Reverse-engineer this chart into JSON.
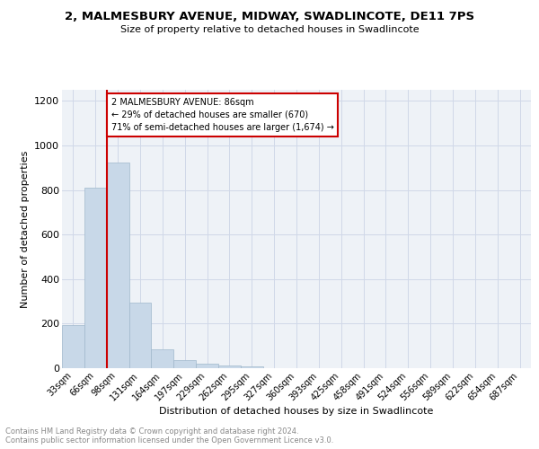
{
  "title": "2, MALMESBURY AVENUE, MIDWAY, SWADLINCOTE, DE11 7PS",
  "subtitle": "Size of property relative to detached houses in Swadlincote",
  "xlabel": "Distribution of detached houses by size in Swadlincote",
  "ylabel": "Number of detached properties",
  "footer_line1": "Contains HM Land Registry data © Crown copyright and database right 2024.",
  "footer_line2": "Contains public sector information licensed under the Open Government Licence v3.0.",
  "bar_labels": [
    "33sqm",
    "66sqm",
    "98sqm",
    "131sqm",
    "164sqm",
    "197sqm",
    "229sqm",
    "262sqm",
    "295sqm",
    "327sqm",
    "360sqm",
    "393sqm",
    "425sqm",
    "458sqm",
    "491sqm",
    "524sqm",
    "556sqm",
    "589sqm",
    "622sqm",
    "654sqm",
    "687sqm"
  ],
  "bar_values": [
    195,
    810,
    925,
    295,
    85,
    35,
    20,
    13,
    8,
    0,
    0,
    0,
    0,
    0,
    0,
    0,
    0,
    0,
    0,
    0,
    0
  ],
  "bar_color": "#c8d8e8",
  "bar_edge_color": "#a0b8cc",
  "annotation_line1": "2 MALMESBURY AVENUE: 86sqm",
  "annotation_line2": "← 29% of detached houses are smaller (670)",
  "annotation_line3": "71% of semi-detached houses are larger (1,674) →",
  "vline_color": "#cc0000",
  "ylim": [
    0,
    1250
  ],
  "yticks": [
    0,
    200,
    400,
    600,
    800,
    1000,
    1200
  ],
  "annotation_box_color": "#cc0000",
  "grid_color": "#d0d8e8",
  "bg_color": "#eef2f7"
}
